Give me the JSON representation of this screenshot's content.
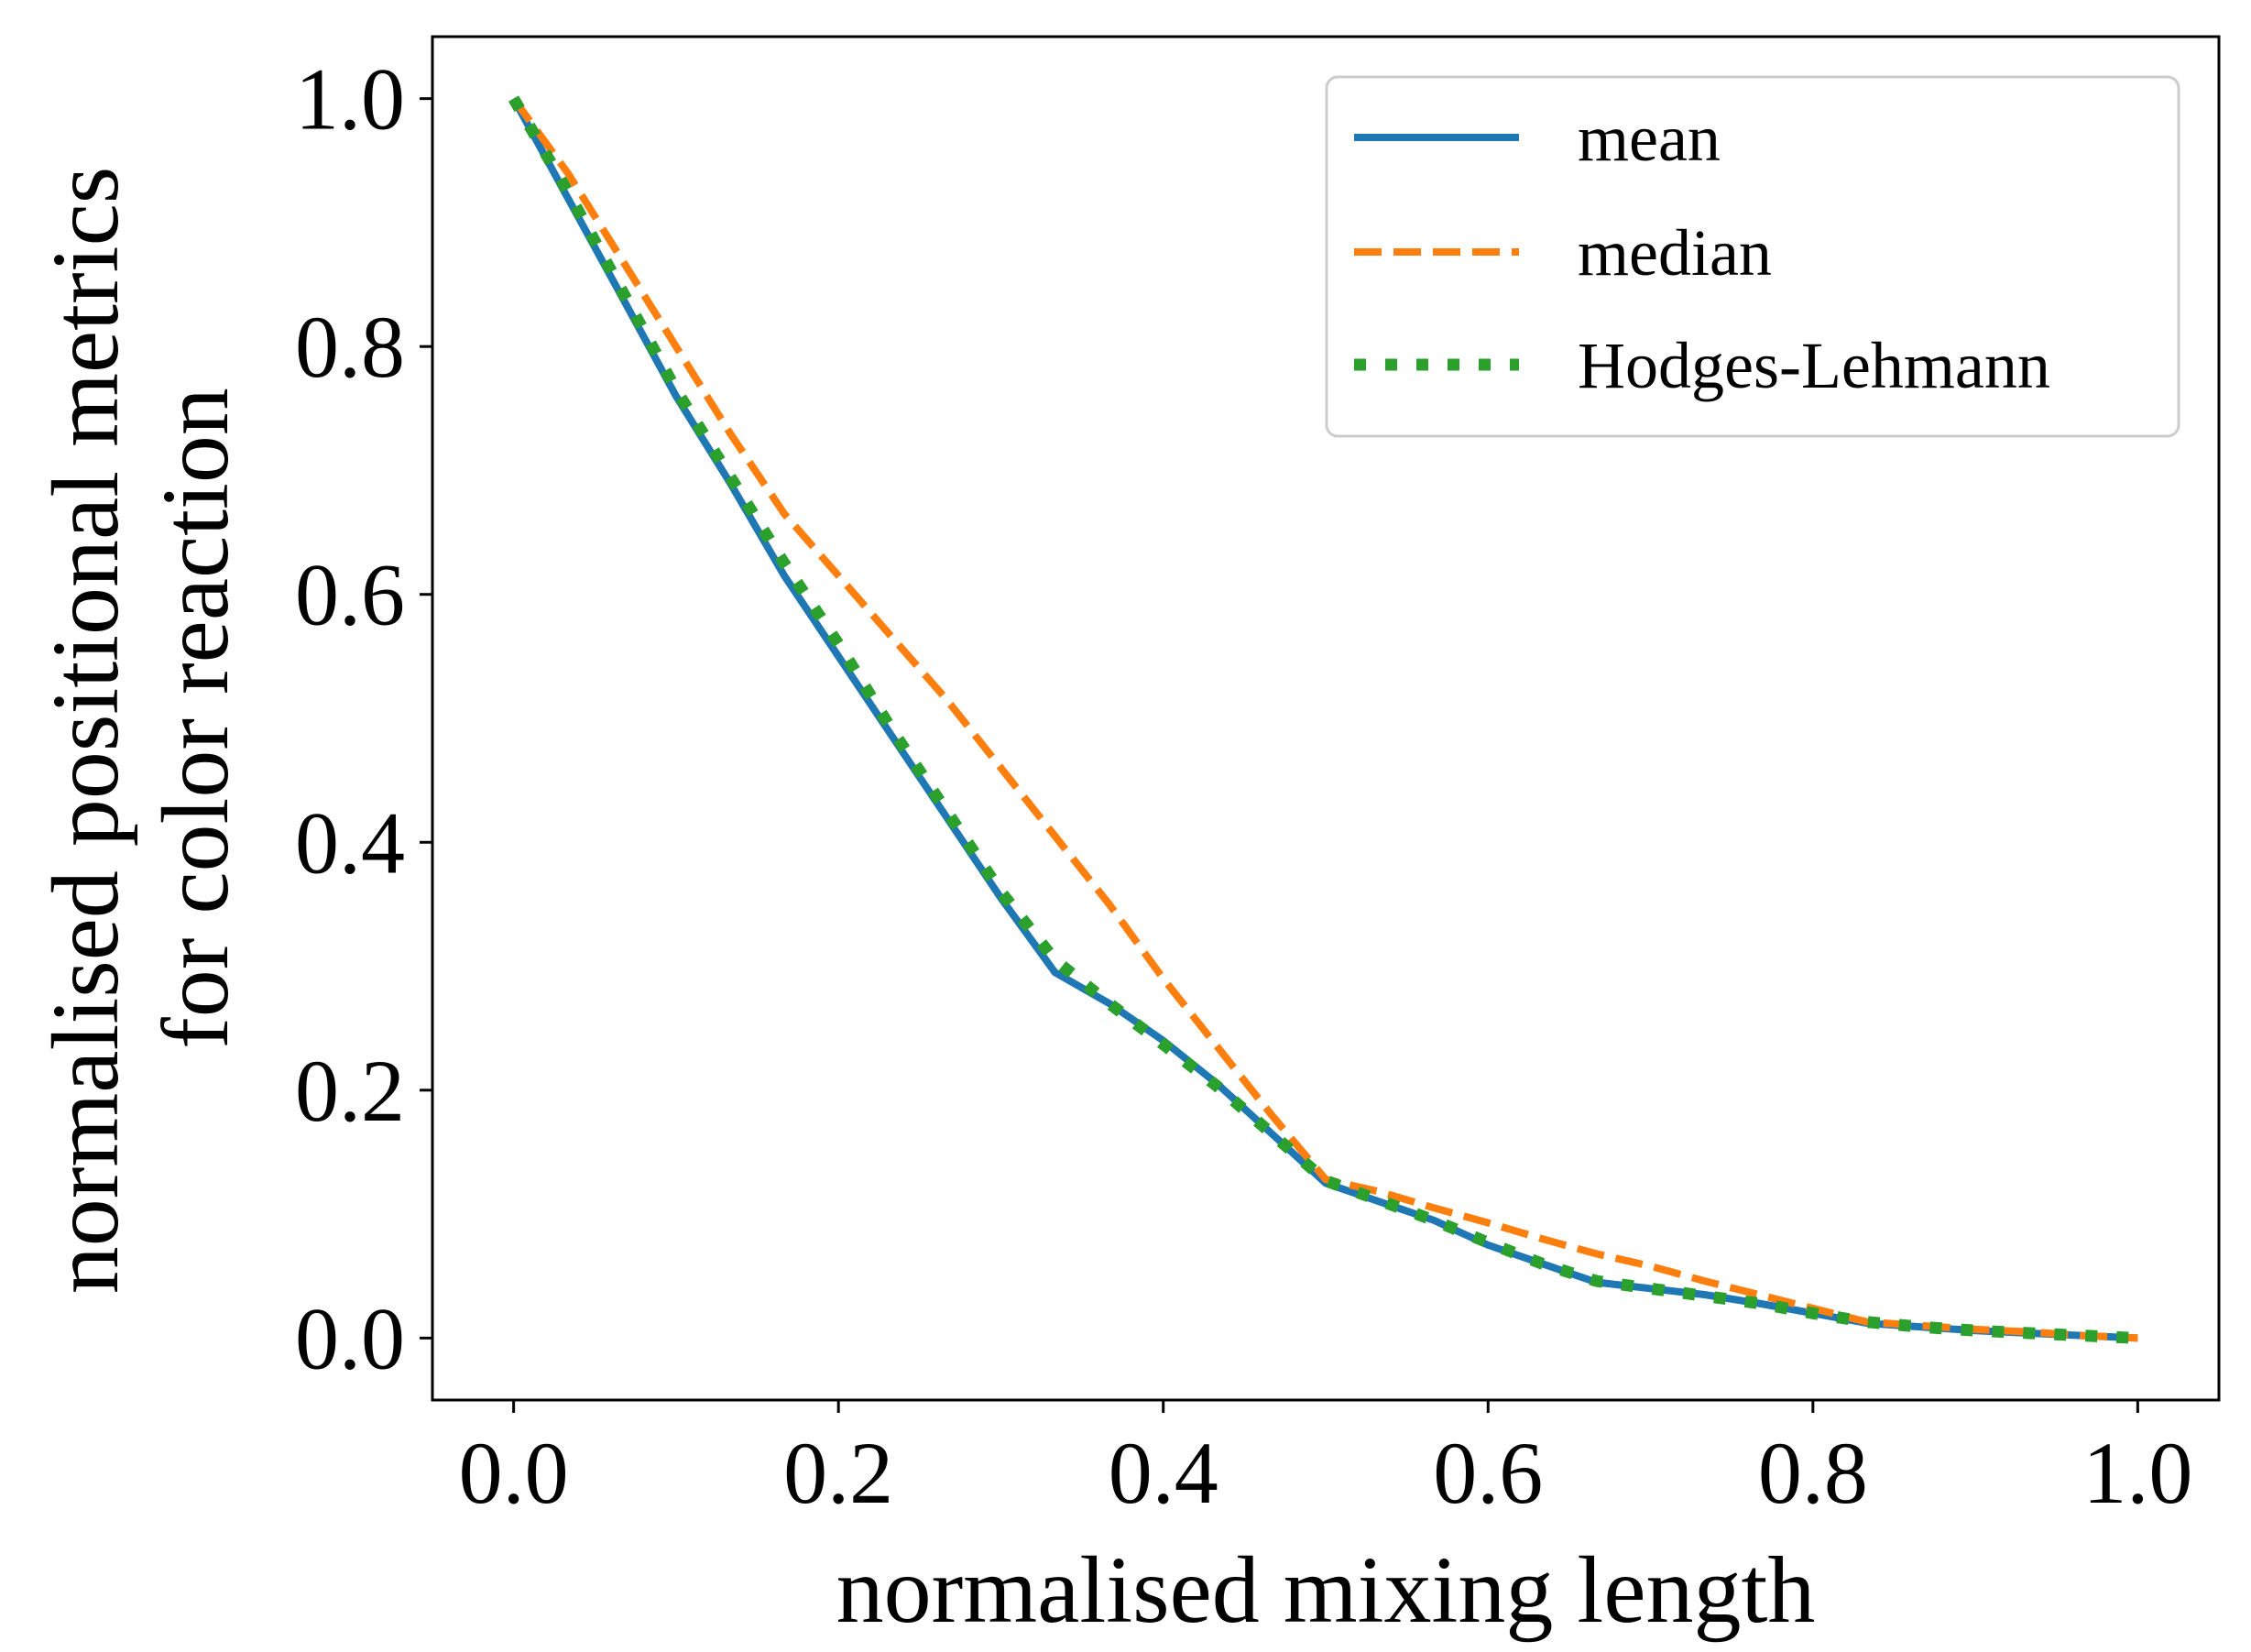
{
  "chart_data": {
    "type": "line",
    "title": "",
    "xlabel": "normalised mixing length",
    "ylabel_lines": [
      "normalised positional metrics",
      "for color reaction"
    ],
    "xlim": [
      -0.05,
      1.05
    ],
    "ylim": [
      -0.05,
      1.05
    ],
    "xticks": [
      0.0,
      0.2,
      0.4,
      0.6,
      0.8,
      1.0
    ],
    "xtick_labels": [
      "0.0",
      "0.2",
      "0.4",
      "0.6",
      "0.8",
      "1.0"
    ],
    "yticks": [
      0.0,
      0.2,
      0.4,
      0.6,
      0.8,
      1.0
    ],
    "ytick_labels": [
      "0.0",
      "0.2",
      "0.4",
      "0.6",
      "0.8",
      "1.0"
    ],
    "grid": false,
    "legend_position": "top-right",
    "series": [
      {
        "name": "mean",
        "color": "#1f77b4",
        "style": "solid",
        "x": [
          0.0,
          0.0333,
          0.0667,
          0.1,
          0.1333,
          0.1667,
          0.2,
          0.2333,
          0.2667,
          0.3,
          0.3333,
          0.3667,
          0.4,
          0.4333,
          0.4667,
          0.5,
          0.5333,
          0.5667,
          0.6,
          0.6333,
          0.6667,
          0.7,
          0.7333,
          0.7667,
          0.8,
          0.8333,
          0.8667,
          0.9,
          0.9333,
          0.9667,
          1.0
        ],
        "y": [
          1.0,
          0.92,
          0.84,
          0.76,
          0.69,
          0.615,
          0.55,
          0.485,
          0.42,
          0.355,
          0.295,
          0.27,
          0.24,
          0.205,
          0.165,
          0.125,
          0.11,
          0.095,
          0.075,
          0.06,
          0.045,
          0.04,
          0.035,
          0.028,
          0.02,
          0.012,
          0.009,
          0.006,
          0.004,
          0.002,
          0.0
        ]
      },
      {
        "name": "median",
        "color": "#ff7f0e",
        "style": "dashed",
        "x": [
          0.0,
          0.0333,
          0.0667,
          0.1,
          0.1333,
          0.1667,
          0.2,
          0.2333,
          0.2667,
          0.3,
          0.3333,
          0.3667,
          0.4,
          0.4333,
          0.4667,
          0.5,
          0.5333,
          0.5667,
          0.6,
          0.6333,
          0.6667,
          0.7,
          0.7333,
          0.7667,
          0.8,
          0.8333,
          0.8667,
          0.9,
          0.9333,
          0.9667,
          1.0
        ],
        "y": [
          1.0,
          0.94,
          0.87,
          0.8,
          0.73,
          0.665,
          0.615,
          0.565,
          0.515,
          0.46,
          0.405,
          0.35,
          0.29,
          0.235,
          0.18,
          0.128,
          0.118,
          0.105,
          0.093,
          0.08,
          0.068,
          0.058,
          0.046,
          0.035,
          0.024,
          0.013,
          0.01,
          0.007,
          0.005,
          0.002,
          0.0
        ]
      },
      {
        "name": "Hodges-Lehmann",
        "color": "#2ca02c",
        "style": "dotted",
        "x": [
          0.0,
          0.0333,
          0.0667,
          0.1,
          0.1333,
          0.1667,
          0.2,
          0.2333,
          0.2667,
          0.3,
          0.3333,
          0.3667,
          0.4,
          0.4333,
          0.4667,
          0.5,
          0.5333,
          0.5667,
          0.6,
          0.6333,
          0.6667,
          0.7,
          0.7333,
          0.7667,
          0.8,
          0.8333,
          0.8667,
          0.9,
          0.9333,
          0.9667,
          1.0
        ],
        "y": [
          1.0,
          0.925,
          0.845,
          0.765,
          0.695,
          0.625,
          0.56,
          0.49,
          0.425,
          0.36,
          0.305,
          0.27,
          0.237,
          0.203,
          0.165,
          0.127,
          0.111,
          0.095,
          0.077,
          0.06,
          0.046,
          0.04,
          0.034,
          0.028,
          0.02,
          0.013,
          0.009,
          0.006,
          0.004,
          0.002,
          0.0
        ]
      }
    ]
  }
}
